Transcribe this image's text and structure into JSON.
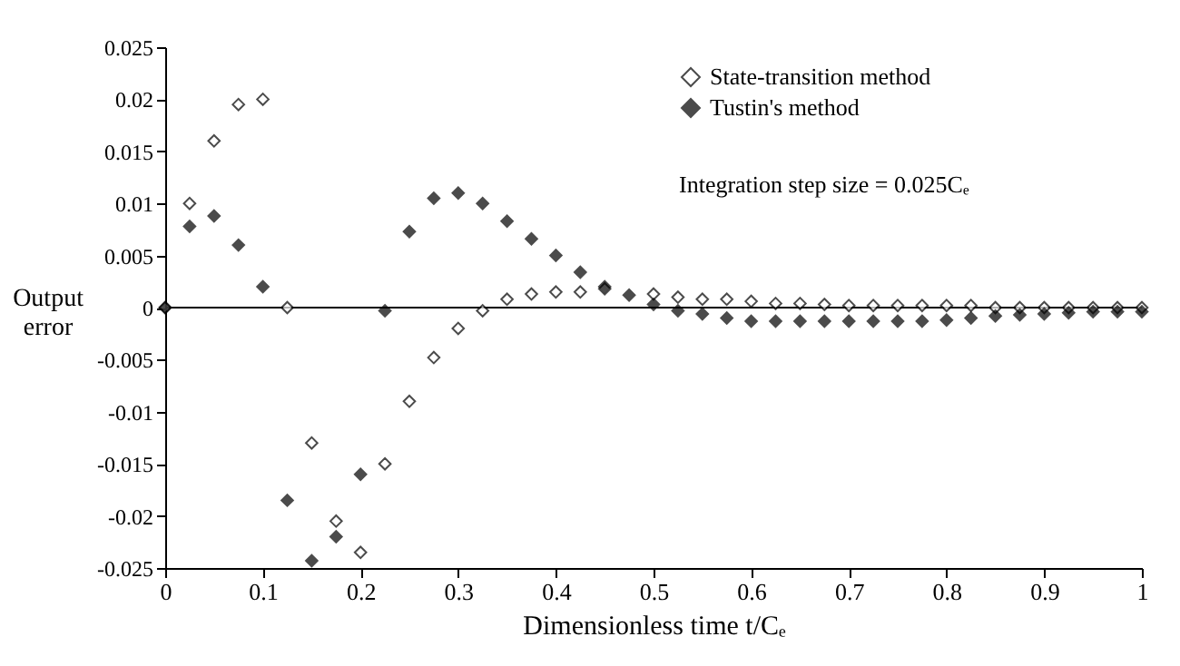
{
  "chart_data": {
    "type": "scatter",
    "xlabel": "Dimensionless time t/Cₑ",
    "ylabel": "Output error",
    "x": [
      0,
      0.025,
      0.05,
      0.075,
      0.1,
      0.125,
      0.15,
      0.175,
      0.2,
      0.225,
      0.25,
      0.275,
      0.3,
      0.325,
      0.35,
      0.375,
      0.4,
      0.425,
      0.45,
      0.475,
      0.5,
      0.525,
      0.55,
      0.575,
      0.6,
      0.625,
      0.65,
      0.675,
      0.7,
      0.725,
      0.75,
      0.775,
      0.8,
      0.825,
      0.85,
      0.875,
      0.9,
      0.925,
      0.95,
      0.975,
      1
    ],
    "series": [
      {
        "name": "State-transition method",
        "color": "#000000",
        "values": [
          0,
          0.01,
          0.016,
          0.0195,
          0.02,
          0,
          -0.013,
          -0.0205,
          -0.0235,
          -0.015,
          -0.009,
          -0.0048,
          -0.002,
          -0.0003,
          0.0008,
          0.0013,
          0.0015,
          0.0015,
          0.0018,
          null,
          0.0013,
          0.001,
          0.0008,
          0.0008,
          0.0006,
          0.0004,
          0.0004,
          0.0003,
          0.0002,
          0.0002,
          0.0002,
          0.0002,
          0.0002,
          0.0002,
          0,
          0,
          0,
          0,
          0,
          0,
          0
        ]
      },
      {
        "name": "Tustin's method",
        "color": "#000000",
        "values": [
          0,
          0.0078,
          0.0088,
          0.006,
          0.002,
          -0.0185,
          -0.0243,
          -0.022,
          -0.016,
          -0.0003,
          0.0073,
          0.0105,
          0.011,
          0.01,
          0.0083,
          0.0066,
          0.005,
          0.0034,
          0.002,
          0.0012,
          0.0003,
          -0.0003,
          -0.0006,
          -0.001,
          -0.0013,
          -0.0013,
          -0.0013,
          -0.0013,
          -0.0013,
          -0.0013,
          -0.0013,
          -0.0013,
          -0.0012,
          -0.001,
          -0.0008,
          -0.0007,
          -0.0006,
          -0.0005,
          -0.0004,
          -0.0004,
          -0.0004
        ]
      }
    ],
    "xlim": [
      0,
      1
    ],
    "xticks": [
      0,
      0.1,
      0.2,
      0.3,
      0.4,
      0.5,
      0.6,
      0.7,
      0.8,
      0.9,
      1
    ],
    "ylim": [
      -0.025,
      0.025
    ],
    "yticks": [
      -0.025,
      -0.02,
      -0.015,
      -0.01,
      -0.005,
      0,
      0.005,
      0.01,
      0.015,
      0.02,
      0.025
    ],
    "ref_lines": [
      {
        "axis": "y",
        "value": 0,
        "color": "#000000"
      }
    ],
    "annotations": [
      "Integration step size = 0.025Cₑ"
    ],
    "marker": "diamond",
    "legend": "top right",
    "grid": false
  }
}
